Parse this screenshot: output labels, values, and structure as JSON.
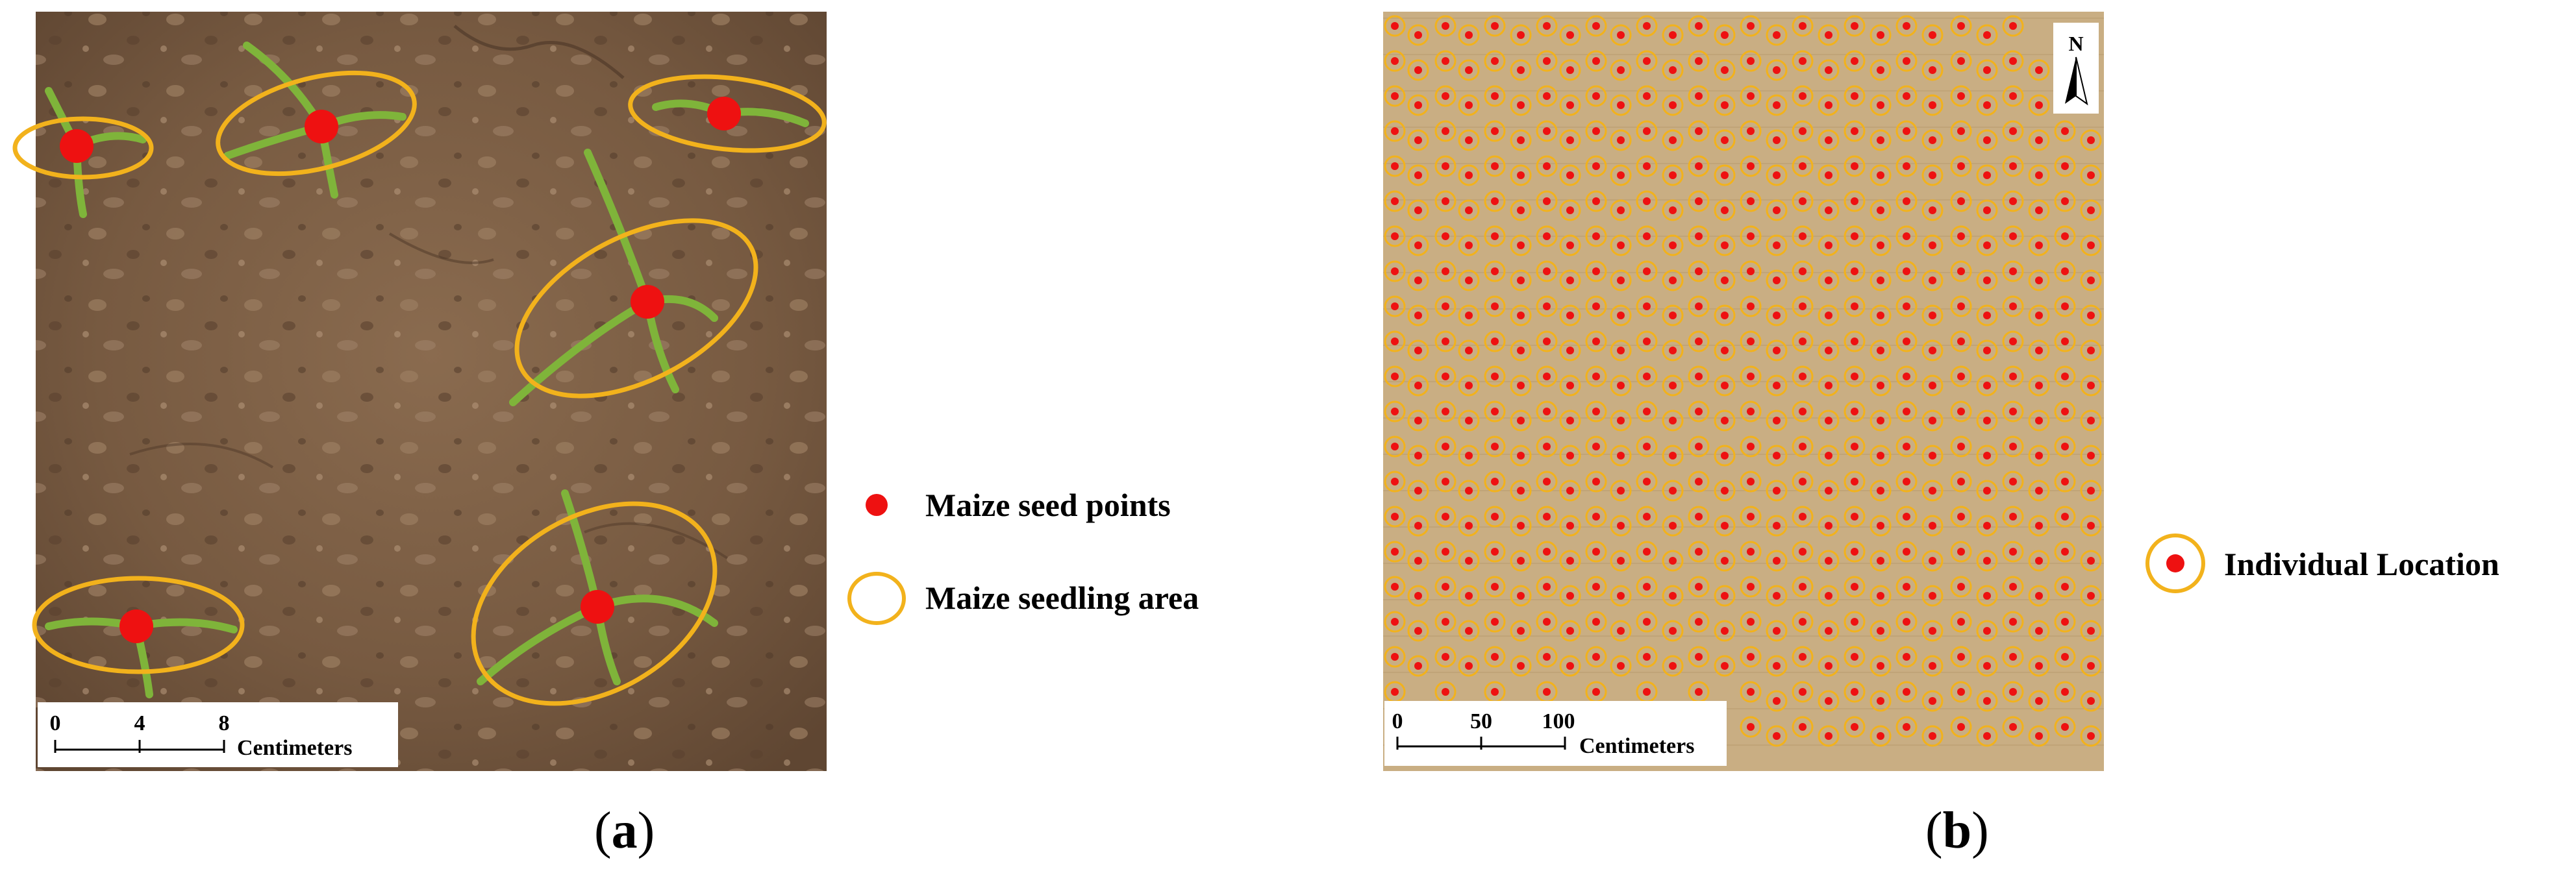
{
  "panel_a": {
    "caption_open": "(",
    "caption_letter": "a",
    "caption_close": ")",
    "scale_bar": {
      "ticks": [
        "0",
        "4",
        "8"
      ],
      "unit": "Centimeters"
    },
    "legend": [
      {
        "symbol": "red-dot",
        "label": "Maize seed points"
      },
      {
        "symbol": "yellow-ellipse",
        "label": "Maize seedling area"
      }
    ],
    "colors": {
      "soil": "#7d6046",
      "seed_point": "#ee1111",
      "seedling_area": "#f2b21c",
      "leaf": "#7fb43a"
    }
  },
  "panel_b": {
    "caption_open": "(",
    "caption_letter": "b",
    "caption_close": ")",
    "north_label": "N",
    "scale_bar": {
      "ticks": [
        "0",
        "50",
        "100"
      ],
      "unit": "Centimeters"
    },
    "legend": [
      {
        "symbol": "dot-in-ring",
        "label": "Individual Location"
      }
    ],
    "colors": {
      "field": "#c9ae83",
      "seed_point": "#ee1111",
      "ring": "#f2b21c"
    }
  }
}
